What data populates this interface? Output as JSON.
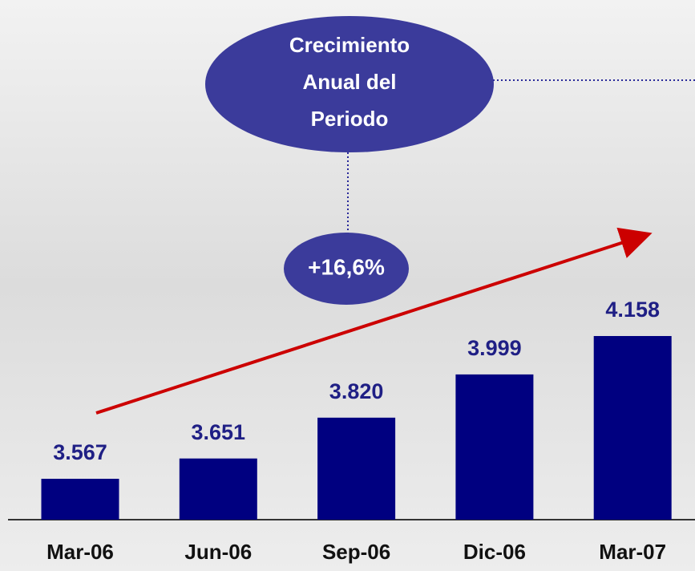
{
  "chart_data": {
    "type": "bar",
    "categories": [
      "Mar-06",
      "Jun-06",
      "Sep-06",
      "Dic-06",
      "Mar-07"
    ],
    "values": [
      3567,
      3651,
      3820,
      3999,
      4158
    ],
    "value_labels": [
      "3.567",
      "3.651",
      "3.820",
      "3.999",
      "4.158"
    ],
    "color": "#000080",
    "callout": [
      "Crecimiento",
      "Anual del",
      "Periodo"
    ],
    "growth": "+16,6%"
  }
}
